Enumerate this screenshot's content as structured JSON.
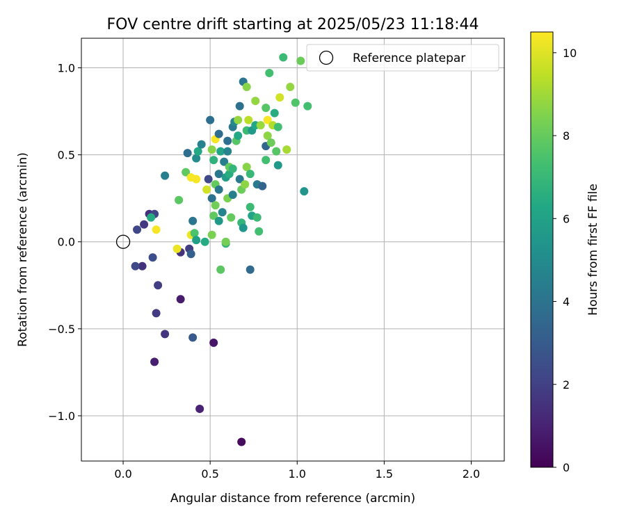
{
  "chart_data": {
    "type": "scatter",
    "title": "FOV centre drift starting at 2025/05/23 11:18:44",
    "xlabel": "Angular distance from reference (arcmin)",
    "ylabel": "Rotation from reference (arcmin)",
    "xlim": [
      -0.24,
      2.19
    ],
    "ylim": [
      -1.26,
      1.17
    ],
    "grid": true,
    "x_ticks": [
      0.0,
      0.5,
      1.0,
      1.5,
      2.0
    ],
    "x_tick_labels": [
      "0.0",
      "0.5",
      "1.0",
      "1.5",
      "2.0"
    ],
    "y_ticks": [
      -1.0,
      -0.5,
      0.0,
      0.5,
      1.0
    ],
    "y_tick_labels": [
      "−1.0",
      "−0.5",
      "0.0",
      "0.5",
      "1.0"
    ],
    "legend": {
      "placement": "top-right",
      "entries": [
        {
          "label": "Reference platepar",
          "marker": "open-circle"
        }
      ]
    },
    "reference_point": {
      "x": 0.0,
      "y": 0.0
    },
    "colorbar": {
      "label": "Hours from first FF file",
      "colormap": "viridis",
      "range": [
        0,
        10.5
      ],
      "ticks": [
        0,
        2,
        4,
        6,
        8,
        10
      ],
      "tick_labels": [
        "0",
        "2",
        "4",
        "6",
        "8",
        "10"
      ]
    },
    "points": [
      {
        "x": 0.68,
        "y": -1.15,
        "c": 0.3
      },
      {
        "x": 0.44,
        "y": -0.96,
        "c": 1.0
      },
      {
        "x": 0.52,
        "y": -0.58,
        "c": 0.6
      },
      {
        "x": 0.18,
        "y": -0.69,
        "c": 0.9
      },
      {
        "x": 0.33,
        "y": -0.33,
        "c": 0.8
      },
      {
        "x": 0.24,
        "y": -0.53,
        "c": 1.6
      },
      {
        "x": 0.19,
        "y": -0.41,
        "c": 1.8
      },
      {
        "x": 0.2,
        "y": -0.25,
        "c": 1.9
      },
      {
        "x": 0.11,
        "y": -0.14,
        "c": 1.5
      },
      {
        "x": 0.07,
        "y": -0.14,
        "c": 2.3
      },
      {
        "x": 0.17,
        "y": -0.09,
        "c": 2.5
      },
      {
        "x": 0.4,
        "y": -0.55,
        "c": 2.9
      },
      {
        "x": 0.33,
        "y": -0.06,
        "c": 1.5
      },
      {
        "x": 0.38,
        "y": -0.04,
        "c": 1.9
      },
      {
        "x": 0.39,
        "y": -0.07,
        "c": 3.2
      },
      {
        "x": 0.08,
        "y": 0.07,
        "c": 2.2
      },
      {
        "x": 0.12,
        "y": 0.1,
        "c": 1.7
      },
      {
        "x": 0.15,
        "y": 0.16,
        "c": 1.4
      },
      {
        "x": 0.18,
        "y": 0.16,
        "c": 2.1
      },
      {
        "x": 0.16,
        "y": 0.14,
        "c": 6.4
      },
      {
        "x": 0.19,
        "y": 0.07,
        "c": 10.4
      },
      {
        "x": 0.31,
        "y": -0.04,
        "c": 10.2
      },
      {
        "x": 0.39,
        "y": 0.04,
        "c": 10.2
      },
      {
        "x": 0.32,
        "y": 0.24,
        "c": 7.8
      },
      {
        "x": 0.24,
        "y": 0.38,
        "c": 4.5
      },
      {
        "x": 0.36,
        "y": 0.4,
        "c": 7.9
      },
      {
        "x": 0.37,
        "y": 0.51,
        "c": 3.8
      },
      {
        "x": 0.39,
        "y": 0.37,
        "c": 10.4
      },
      {
        "x": 0.42,
        "y": 0.36,
        "c": 10.4
      },
      {
        "x": 0.4,
        "y": 0.12,
        "c": 4.1
      },
      {
        "x": 0.41,
        "y": 0.05,
        "c": 7.5
      },
      {
        "x": 0.42,
        "y": 0.01,
        "c": 5.9
      },
      {
        "x": 0.42,
        "y": 0.48,
        "c": 5.1
      },
      {
        "x": 0.43,
        "y": 0.52,
        "c": 6.3
      },
      {
        "x": 0.45,
        "y": 0.56,
        "c": 4.6
      },
      {
        "x": 0.47,
        "y": 0.0,
        "c": 6.4
      },
      {
        "x": 0.48,
        "y": 0.3,
        "c": 9.8
      },
      {
        "x": 0.49,
        "y": 0.36,
        "c": 2.3
      },
      {
        "x": 0.5,
        "y": 0.7,
        "c": 3.8
      },
      {
        "x": 0.51,
        "y": 0.25,
        "c": 3.9
      },
      {
        "x": 0.51,
        "y": 0.04,
        "c": 8.4
      },
      {
        "x": 0.51,
        "y": 0.53,
        "c": 8.6
      },
      {
        "x": 0.52,
        "y": 0.47,
        "c": 6.7
      },
      {
        "x": 0.52,
        "y": 0.15,
        "c": 7.9
      },
      {
        "x": 0.53,
        "y": 0.21,
        "c": 8.2
      },
      {
        "x": 0.53,
        "y": 0.33,
        "c": 8.0
      },
      {
        "x": 0.53,
        "y": 0.59,
        "c": 10.4
      },
      {
        "x": 0.55,
        "y": 0.12,
        "c": 5.6
      },
      {
        "x": 0.55,
        "y": 0.3,
        "c": 4.2
      },
      {
        "x": 0.55,
        "y": 0.39,
        "c": 4.2
      },
      {
        "x": 0.55,
        "y": 0.62,
        "c": 3.7
      },
      {
        "x": 0.56,
        "y": -0.16,
        "c": 7.8
      },
      {
        "x": 0.56,
        "y": 0.52,
        "c": 6.1
      },
      {
        "x": 0.57,
        "y": 0.17,
        "c": 4.7
      },
      {
        "x": 0.58,
        "y": 0.46,
        "c": 4.4
      },
      {
        "x": 0.59,
        "y": -0.01,
        "c": 6.8
      },
      {
        "x": 0.59,
        "y": 0.0,
        "c": 8.3
      },
      {
        "x": 0.59,
        "y": 0.37,
        "c": 5.8
      },
      {
        "x": 0.6,
        "y": 0.25,
        "c": 8.4
      },
      {
        "x": 0.6,
        "y": 0.52,
        "c": 4.7
      },
      {
        "x": 0.6,
        "y": 0.58,
        "c": 3.8
      },
      {
        "x": 0.61,
        "y": 0.39,
        "c": 6.5
      },
      {
        "x": 0.61,
        "y": 0.43,
        "c": 8.0
      },
      {
        "x": 0.62,
        "y": 0.14,
        "c": 8.0
      },
      {
        "x": 0.63,
        "y": 0.27,
        "c": 4.5
      },
      {
        "x": 0.63,
        "y": 0.42,
        "c": 6.9
      },
      {
        "x": 0.63,
        "y": 0.66,
        "c": 4.3
      },
      {
        "x": 0.64,
        "y": 0.69,
        "c": 4.9
      },
      {
        "x": 0.65,
        "y": 0.58,
        "c": 7.7
      },
      {
        "x": 0.66,
        "y": 0.61,
        "c": 6.3
      },
      {
        "x": 0.66,
        "y": 0.7,
        "c": 8.8
      },
      {
        "x": 0.67,
        "y": 0.36,
        "c": 4.3
      },
      {
        "x": 0.67,
        "y": 0.78,
        "c": 3.9
      },
      {
        "x": 0.68,
        "y": 0.3,
        "c": 8.1
      },
      {
        "x": 0.68,
        "y": 0.11,
        "c": 6.9
      },
      {
        "x": 0.69,
        "y": 0.08,
        "c": 5.5
      },
      {
        "x": 0.69,
        "y": 0.92,
        "c": 4.1
      },
      {
        "x": 0.7,
        "y": 0.33,
        "c": 8.7
      },
      {
        "x": 0.71,
        "y": 0.43,
        "c": 8.6
      },
      {
        "x": 0.71,
        "y": 0.64,
        "c": 7.1
      },
      {
        "x": 0.71,
        "y": 0.89,
        "c": 8.6
      },
      {
        "x": 0.72,
        "y": 0.7,
        "c": 9.4
      },
      {
        "x": 0.73,
        "y": -0.16,
        "c": 3.6
      },
      {
        "x": 0.73,
        "y": 0.2,
        "c": 7.1
      },
      {
        "x": 0.73,
        "y": 0.39,
        "c": 7.0
      },
      {
        "x": 0.74,
        "y": 0.64,
        "c": 5.6
      },
      {
        "x": 0.74,
        "y": 0.15,
        "c": 6.1
      },
      {
        "x": 0.76,
        "y": 0.67,
        "c": 6.3
      },
      {
        "x": 0.76,
        "y": 0.81,
        "c": 8.8
      },
      {
        "x": 0.77,
        "y": 0.14,
        "c": 7.1
      },
      {
        "x": 0.77,
        "y": 0.33,
        "c": 4.3
      },
      {
        "x": 0.78,
        "y": 0.06,
        "c": 7.3
      },
      {
        "x": 0.79,
        "y": 0.67,
        "c": 8.9
      },
      {
        "x": 0.8,
        "y": 0.32,
        "c": 3.4
      },
      {
        "x": 0.82,
        "y": 0.47,
        "c": 7.3
      },
      {
        "x": 0.82,
        "y": 0.55,
        "c": 3.4
      },
      {
        "x": 0.82,
        "y": 0.77,
        "c": 7.7
      },
      {
        "x": 0.83,
        "y": 0.61,
        "c": 8.7
      },
      {
        "x": 0.83,
        "y": 0.7,
        "c": 10.4
      },
      {
        "x": 0.84,
        "y": 0.97,
        "c": 7.3
      },
      {
        "x": 0.85,
        "y": 0.57,
        "c": 8.1
      },
      {
        "x": 0.86,
        "y": 0.67,
        "c": 9.3
      },
      {
        "x": 0.87,
        "y": 0.74,
        "c": 6.5
      },
      {
        "x": 0.88,
        "y": 0.52,
        "c": 7.7
      },
      {
        "x": 0.89,
        "y": 0.44,
        "c": 5.6
      },
      {
        "x": 0.89,
        "y": 0.66,
        "c": 7.3
      },
      {
        "x": 0.9,
        "y": 0.83,
        "c": 9.8
      },
      {
        "x": 0.92,
        "y": 1.06,
        "c": 7.1
      },
      {
        "x": 0.94,
        "y": 0.53,
        "c": 9.1
      },
      {
        "x": 0.96,
        "y": 0.89,
        "c": 8.8
      },
      {
        "x": 0.99,
        "y": 0.8,
        "c": 7.6
      },
      {
        "x": 1.02,
        "y": 1.04,
        "c": 8.1
      },
      {
        "x": 1.04,
        "y": 0.29,
        "c": 5.4
      },
      {
        "x": 1.06,
        "y": 0.78,
        "c": 7.3
      }
    ]
  }
}
